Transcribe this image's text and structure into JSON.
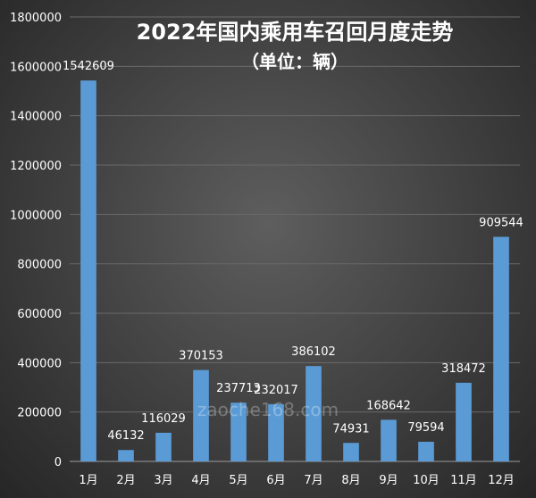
{
  "watermark": "zaoche168.com",
  "chart_data": {
    "type": "bar",
    "title": "2022年国内乘用车召回月度走势",
    "subtitle": "（单位：辆）",
    "categories": [
      "1月",
      "2月",
      "3月",
      "4月",
      "5月",
      "6月",
      "7月",
      "8月",
      "9月",
      "10月",
      "11月",
      "12月"
    ],
    "values": [
      1542609,
      46132,
      116029,
      370153,
      237713,
      232017,
      386102,
      74931,
      168642,
      79594,
      318472,
      909544
    ],
    "ylim": [
      0,
      1800000
    ],
    "yticks": [
      0,
      200000,
      400000,
      600000,
      800000,
      1000000,
      1200000,
      1400000,
      1600000,
      1800000
    ],
    "grid": true,
    "legend": "none",
    "bar_color": "#5b9bd5"
  }
}
